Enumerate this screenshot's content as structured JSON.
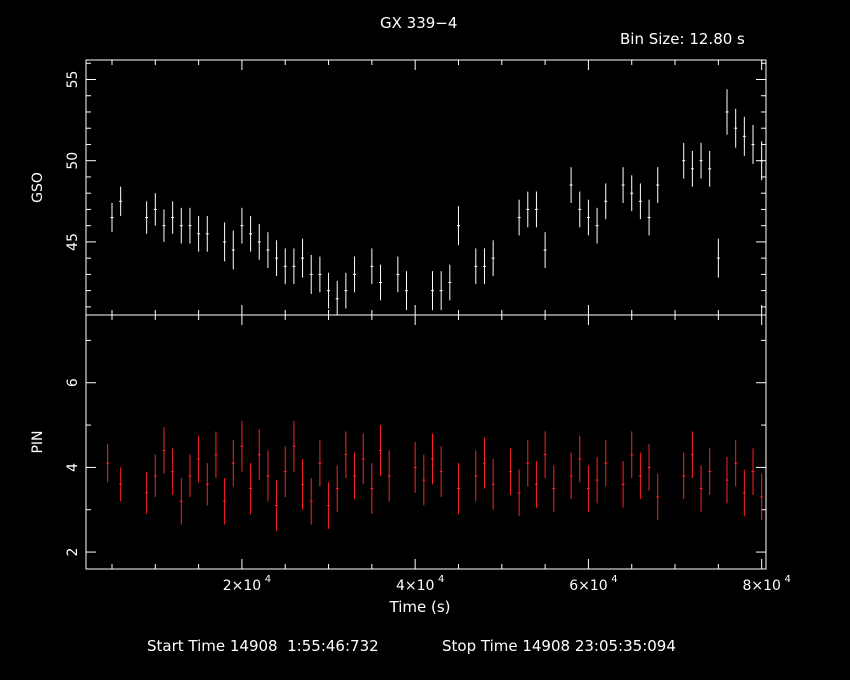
{
  "title": "GX 339−4",
  "bin_size": "Bin Size: 12.80 s",
  "footer": {
    "start": "Start Time 14908  1:55:46:732",
    "stop": "Stop Time 14908 23:05:35:094"
  },
  "colors": {
    "gso": "#ffffff",
    "pin": "#ff2020",
    "axes": "#ffffff"
  },
  "chart_data": [
    {
      "type": "scatter",
      "panel": "top",
      "ylabel": "GSO",
      "xlim": [
        2000,
        80500
      ],
      "ylim": [
        40.5,
        56.2
      ],
      "yticks": [
        45,
        50,
        55
      ],
      "series": [
        {
          "x": [
            5000,
            6000,
            9000,
            10000,
            11000,
            12000,
            13000,
            14000,
            15000,
            16000,
            18000,
            19000,
            20000,
            21000,
            22000,
            23000,
            24000,
            25000,
            26000,
            27000,
            28000,
            29000,
            30000,
            31000,
            32000,
            33000,
            35000,
            36000,
            38000,
            39000,
            42000,
            43000,
            44000,
            45000,
            47000,
            48000,
            49000,
            52000,
            53000,
            54000,
            55000,
            58000,
            59000,
            60000,
            61000,
            62000,
            64000,
            65000,
            66000,
            67000,
            68000,
            71000,
            72000,
            73000,
            74000,
            75000,
            76000,
            77000,
            78000,
            79000,
            80000
          ],
          "y": [
            46.5,
            47.5,
            46.5,
            47,
            46,
            46.5,
            46,
            46,
            45.5,
            45.5,
            45,
            44.5,
            46,
            45.5,
            45,
            44.5,
            44,
            43.5,
            43.5,
            44,
            43,
            43,
            42,
            41.5,
            42,
            43,
            43.5,
            42.5,
            43,
            42,
            42,
            42,
            42.5,
            46,
            43.5,
            43.5,
            44,
            46.5,
            47,
            47,
            44.5,
            48.5,
            47,
            46.5,
            46,
            47.5,
            48.5,
            48,
            47.5,
            46.5,
            48.5,
            50,
            49.5,
            50,
            49.5,
            44,
            53,
            52,
            51.5,
            51,
            50
          ],
          "yerr": [
            0.9,
            0.9,
            1,
            1,
            1,
            1,
            1.1,
            1.1,
            1.1,
            1.1,
            1.2,
            1.2,
            1.1,
            1.1,
            1.1,
            1.1,
            1.1,
            1.1,
            1.1,
            1.2,
            1.2,
            1.1,
            1.1,
            1.1,
            1.1,
            1.1,
            1.1,
            1.1,
            1.1,
            1.2,
            1.2,
            1.2,
            1.1,
            1.2,
            1.1,
            1.1,
            1.1,
            1.1,
            1.1,
            1.1,
            1.1,
            1.1,
            1.1,
            1.1,
            1.1,
            1.1,
            1.1,
            1.1,
            1.1,
            1.1,
            1.1,
            1.1,
            1.1,
            1.1,
            1.1,
            1.2,
            1.4,
            1.2,
            1.2,
            1.2,
            1.2
          ]
        }
      ]
    },
    {
      "type": "scatter",
      "panel": "bottom",
      "ylabel": "PIN",
      "xlabel": "Time (s)",
      "xlim": [
        2000,
        80500
      ],
      "ylim": [
        1.6,
        7.6
      ],
      "yticks": [
        2,
        4,
        6
      ],
      "xticks": [
        20000,
        40000,
        60000,
        80000
      ],
      "xtick_labels": [
        "2×10",
        "4×10",
        "6×10",
        "8×10"
      ],
      "xtick_exp": "4",
      "series": [
        {
          "x": [
            4500,
            6000,
            9000,
            10000,
            11000,
            12000,
            13000,
            14000,
            15000,
            16000,
            17000,
            18000,
            19000,
            20000,
            21000,
            22000,
            23000,
            24000,
            25000,
            26000,
            27000,
            28000,
            29000,
            30000,
            31000,
            32000,
            33000,
            34000,
            35000,
            36000,
            37000,
            40000,
            41000,
            42000,
            43000,
            45000,
            47000,
            48000,
            49000,
            51000,
            52000,
            53000,
            54000,
            55000,
            56000,
            58000,
            59000,
            60000,
            61000,
            62000,
            64000,
            65000,
            66000,
            67000,
            68000,
            71000,
            72000,
            73000,
            74000,
            76000,
            77000,
            78000,
            79000,
            80000
          ],
          "y": [
            4.1,
            3.6,
            3.4,
            3.8,
            4.4,
            3.9,
            3.2,
            3.8,
            4.2,
            3.6,
            4.3,
            3.2,
            4.1,
            4.5,
            3.5,
            4.3,
            3.8,
            3.1,
            3.9,
            4.5,
            3.6,
            3.2,
            4.1,
            3.1,
            3.5,
            4.3,
            3.8,
            4.2,
            3.5,
            4.4,
            3.8,
            4.0,
            3.7,
            4.2,
            3.9,
            3.5,
            3.8,
            4.1,
            3.6,
            3.9,
            3.4,
            4.1,
            3.6,
            4.3,
            3.5,
            3.8,
            4.2,
            3.5,
            3.7,
            4.1,
            3.6,
            4.3,
            3.8,
            4.0,
            3.3,
            3.8,
            4.3,
            3.5,
            3.9,
            3.7,
            4.1,
            3.4,
            3.9,
            3.3
          ],
          "yerr": [
            0.45,
            0.4,
            0.5,
            0.5,
            0.55,
            0.55,
            0.55,
            0.5,
            0.55,
            0.5,
            0.55,
            0.55,
            0.55,
            0.6,
            0.6,
            0.6,
            0.6,
            0.6,
            0.6,
            0.6,
            0.6,
            0.55,
            0.55,
            0.55,
            0.55,
            0.55,
            0.55,
            0.6,
            0.6,
            0.6,
            0.6,
            0.6,
            0.6,
            0.6,
            0.6,
            0.6,
            0.6,
            0.6,
            0.6,
            0.55,
            0.55,
            0.55,
            0.55,
            0.55,
            0.55,
            0.55,
            0.55,
            0.55,
            0.55,
            0.55,
            0.55,
            0.55,
            0.55,
            0.55,
            0.55,
            0.55,
            0.55,
            0.55,
            0.55,
            0.55,
            0.55,
            0.55,
            0.55,
            0.55
          ]
        }
      ]
    }
  ]
}
